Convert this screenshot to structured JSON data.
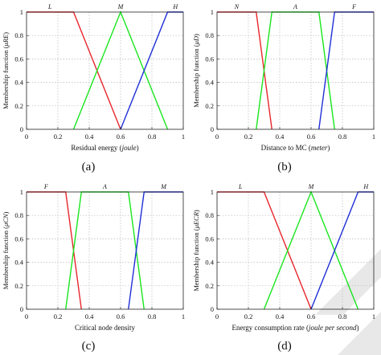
{
  "chart_data": [
    {
      "type": "line",
      "caption": "(a)",
      "xlabel": "Residual energy",
      "xlabel_unit": "joule",
      "ylabel": "Membership function",
      "ylabel_math": "μRE",
      "xlim": [
        0,
        1
      ],
      "ylim": [
        0,
        1
      ],
      "x_ticks": [
        "0",
        "0.2",
        "0.4",
        "0.6",
        "0.8",
        "1"
      ],
      "y_ticks": [
        "0",
        "0.2",
        "0.4",
        "0.6",
        "0.8",
        "1"
      ],
      "grid": true,
      "series": [
        {
          "name": "L",
          "color": "#e8262b",
          "x": [
            0,
            0.3,
            0.6
          ],
          "y": [
            1,
            1,
            0
          ]
        },
        {
          "name": "M",
          "color": "#19e61e",
          "x": [
            0.3,
            0.6,
            0.9
          ],
          "y": [
            0,
            1,
            0
          ]
        },
        {
          "name": "H",
          "color": "#1f2fd8",
          "x": [
            0.6,
            0.9,
            1
          ],
          "y": [
            0,
            1,
            1
          ]
        }
      ]
    },
    {
      "type": "line",
      "caption": "(b)",
      "xlabel": "Distance to MC",
      "xlabel_unit": "meter",
      "ylabel": "Membership function",
      "ylabel_math": "μD",
      "xlim": [
        0,
        1
      ],
      "ylim": [
        0,
        1
      ],
      "x_ticks": [
        "0",
        "0.2",
        "0.4",
        "0.6",
        "0.8",
        "1"
      ],
      "y_ticks": [
        "0",
        "0.2",
        "0.4",
        "0.6",
        "0.8",
        "1"
      ],
      "grid": true,
      "series": [
        {
          "name": "N",
          "color": "#e8262b",
          "x": [
            0,
            0.25,
            0.35
          ],
          "y": [
            1,
            1,
            0
          ]
        },
        {
          "name": "A",
          "color": "#19e61e",
          "x": [
            0.25,
            0.35,
            0.65,
            0.75
          ],
          "y": [
            0,
            1,
            1,
            0
          ]
        },
        {
          "name": "F",
          "color": "#1f2fd8",
          "x": [
            0.65,
            0.75,
            1
          ],
          "y": [
            0,
            1,
            1
          ]
        }
      ]
    },
    {
      "type": "line",
      "caption": "(c)",
      "xlabel": "Critical node density",
      "xlabel_unit": "",
      "ylabel": "Membership function",
      "ylabel_math": "μCN",
      "xlim": [
        0,
        1
      ],
      "ylim": [
        0,
        1
      ],
      "x_ticks": [
        "0",
        "0.2",
        "0.4",
        "0.6",
        "0.8",
        "1"
      ],
      "y_ticks": [
        "0",
        "0.2",
        "0.4",
        "0.6",
        "0.8",
        "1"
      ],
      "grid": true,
      "series": [
        {
          "name": "F",
          "color": "#e8262b",
          "x": [
            0,
            0.25,
            0.35
          ],
          "y": [
            1,
            1,
            0
          ]
        },
        {
          "name": "A",
          "color": "#19e61e",
          "x": [
            0.25,
            0.35,
            0.65,
            0.75
          ],
          "y": [
            0,
            1,
            1,
            0
          ]
        },
        {
          "name": "M",
          "color": "#1f2fd8",
          "x": [
            0.65,
            0.75,
            1
          ],
          "y": [
            0,
            1,
            1
          ]
        }
      ]
    },
    {
      "type": "line",
      "caption": "(d)",
      "xlabel": "Energy consumption rate",
      "xlabel_unit": "joule per second",
      "ylabel": "Membership function",
      "ylabel_math": "μECR",
      "xlim": [
        0,
        1
      ],
      "ylim": [
        0,
        1
      ],
      "x_ticks": [
        "0",
        "0.2",
        "0.4",
        "0.6",
        "0.8",
        "1"
      ],
      "y_ticks": [
        "0",
        "0.2",
        "0.4",
        "0.6",
        "0.8",
        "1"
      ],
      "grid": true,
      "series": [
        {
          "name": "L",
          "color": "#e8262b",
          "x": [
            0,
            0.3,
            0.6
          ],
          "y": [
            1,
            1,
            0
          ]
        },
        {
          "name": "M",
          "color": "#19e61e",
          "x": [
            0.3,
            0.6,
            0.9
          ],
          "y": [
            0,
            1,
            0
          ]
        },
        {
          "name": "H",
          "color": "#1f2fd8",
          "x": [
            0.6,
            0.9,
            1
          ],
          "y": [
            0,
            1,
            1
          ]
        }
      ]
    }
  ],
  "watermark_color": "#e6e6e6"
}
